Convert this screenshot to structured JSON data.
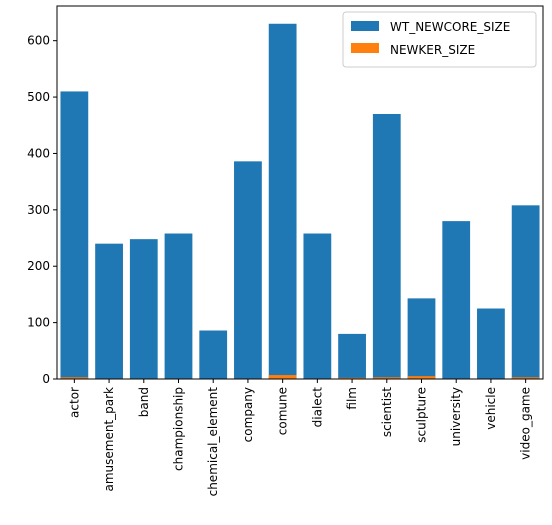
{
  "chart_data": {
    "type": "bar",
    "stacked": true,
    "categories": [
      "actor",
      "amusement_park",
      "band",
      "championship",
      "chemical_element",
      "company",
      "comune",
      "dialect",
      "film",
      "scientist",
      "sculpture",
      "university",
      "vehicle",
      "video_game"
    ],
    "series": [
      {
        "name": "WT_NEWCORE_SIZE",
        "color": "#1f77b4",
        "values": [
          510,
          240,
          248,
          258,
          86,
          386,
          630,
          258,
          80,
          470,
          143,
          280,
          125,
          308
        ]
      },
      {
        "name": "NEWKER_SIZE",
        "color": "#ff7f0e",
        "values": [
          3,
          1,
          1,
          1,
          0.5,
          1,
          7,
          1,
          2,
          3,
          5,
          1,
          1,
          3
        ]
      }
    ],
    "yticks": [
      0,
      100,
      200,
      300,
      400,
      500,
      600
    ],
    "ylim": [
      0,
      661.5
    ],
    "xlabel": "",
    "ylabel": "",
    "title": "",
    "grid": false,
    "legend_position": "top-right"
  }
}
